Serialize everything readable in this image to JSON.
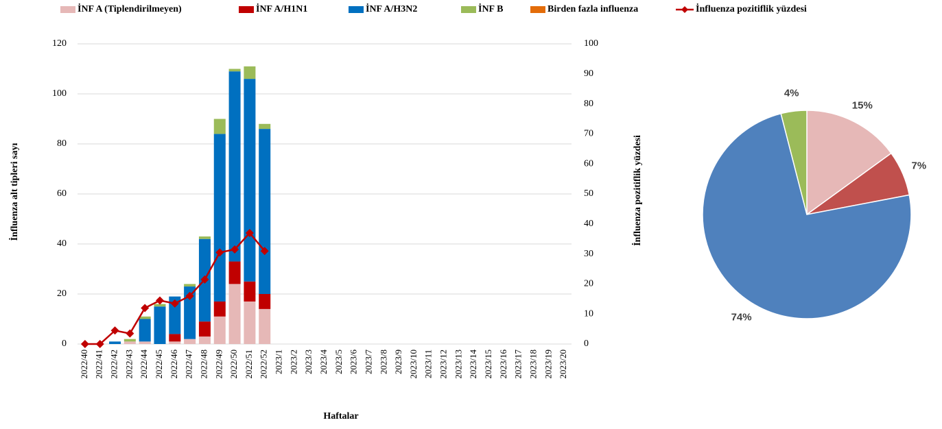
{
  "chart_data": [
    {
      "type": "bar",
      "stacked": true,
      "grid": true,
      "x_label": "Haftalar",
      "y_label": "İnfluenza alt tipleri sayı",
      "y2_label": "İnfluenza pozitiflik yüzdesi",
      "legend": "top",
      "categories": [
        "2022/40",
        "2022/41",
        "2022/42",
        "2022/43",
        "2022/44",
        "2022/45",
        "2022/46",
        "2022/47",
        "2022/48",
        "2022/49",
        "2022/50",
        "2022/51",
        "2022/52",
        "2023/1",
        "2023/2",
        "2023/3",
        "2023/4",
        "2023/5",
        "2023/6",
        "2023/7",
        "2023/8",
        "2023/9",
        "2023/10",
        "2023/11",
        "2023/12",
        "2023/13",
        "2023/14",
        "2023/15",
        "2023/16",
        "2023/17",
        "2023/18",
        "2023/19",
        "2023/20"
      ],
      "ylim": [
        0,
        120
      ],
      "yticks": [
        0,
        20,
        40,
        60,
        80,
        100,
        120
      ],
      "y2lim": [
        0,
        100
      ],
      "y2ticks": [
        0,
        10,
        20,
        30,
        40,
        50,
        60,
        70,
        80,
        90,
        100
      ],
      "series": [
        {
          "name": "İNF A (Tiplendirilmeyen)",
          "color": "#e6b8b7",
          "values": [
            0,
            0,
            0,
            1,
            1,
            0,
            1,
            2,
            3,
            11,
            24,
            17,
            14,
            null,
            null,
            null,
            null,
            null,
            null,
            null,
            null,
            null,
            null,
            null,
            null,
            null,
            null,
            null,
            null,
            null,
            null,
            null,
            null
          ]
        },
        {
          "name": "İNF A/H1N1",
          "color": "#c00000",
          "values": [
            0,
            0,
            0,
            0,
            0,
            0,
            3,
            0,
            6,
            6,
            9,
            8,
            6,
            null,
            null,
            null,
            null,
            null,
            null,
            null,
            null,
            null,
            null,
            null,
            null,
            null,
            null,
            null,
            null,
            null,
            null,
            null,
            null
          ]
        },
        {
          "name": "İNF A/H3N2",
          "color": "#0070c0",
          "values": [
            0,
            0,
            1,
            0,
            9,
            15,
            15,
            21,
            33,
            67,
            76,
            81,
            66,
            null,
            null,
            null,
            null,
            null,
            null,
            null,
            null,
            null,
            null,
            null,
            null,
            null,
            null,
            null,
            null,
            null,
            null,
            null,
            null
          ]
        },
        {
          "name": "İNF B",
          "color": "#9bbb59",
          "values": [
            0,
            0,
            0,
            1,
            1,
            1,
            0,
            1,
            1,
            6,
            1,
            5,
            2,
            null,
            null,
            null,
            null,
            null,
            null,
            null,
            null,
            null,
            null,
            null,
            null,
            null,
            null,
            null,
            null,
            null,
            null,
            null,
            null
          ]
        },
        {
          "name": "Birden fazla influenza",
          "color": "#e36c09",
          "values": [
            0,
            0,
            0,
            0,
            0,
            0,
            0,
            0,
            0,
            0,
            0,
            0,
            0,
            null,
            null,
            null,
            null,
            null,
            null,
            null,
            null,
            null,
            null,
            null,
            null,
            null,
            null,
            null,
            null,
            null,
            null,
            null,
            null
          ]
        },
        {
          "name": "İnfluenza pozitiflik yüzdesi",
          "type": "line",
          "axis": "y2",
          "color": "#c00000",
          "values": [
            0,
            0,
            4.5,
            3.5,
            12,
            14.5,
            13.5,
            16,
            21.5,
            30.5,
            31.5,
            37,
            31,
            null,
            null,
            null,
            null,
            null,
            null,
            null,
            null,
            null,
            null,
            null,
            null,
            null,
            null,
            null,
            null,
            null,
            null,
            null,
            null
          ]
        }
      ]
    },
    {
      "type": "pie",
      "values": [
        15,
        7,
        74,
        4
      ],
      "value_labels": [
        "15%",
        "7%",
        "74%",
        "4%"
      ],
      "colors": [
        "#e6b8b7",
        "#c0504d",
        "#4f81bd",
        "#9bbb59"
      ]
    }
  ]
}
